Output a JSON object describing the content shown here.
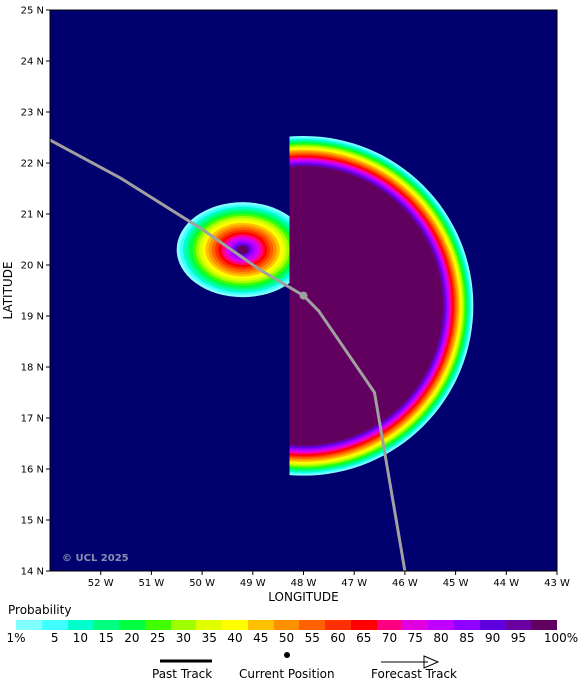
{
  "map": {
    "xlabel": "LONGITUDE",
    "ylabel": "LATITUDE",
    "lon_ticks": [
      "52 W",
      "51 W",
      "50 W",
      "49 W",
      "48 W",
      "47 W",
      "46 W",
      "45 W",
      "44 W",
      "43 W"
    ],
    "lat_ticks": [
      "25 N",
      "24 N",
      "23 N",
      "22 N",
      "21 N",
      "20 N",
      "19 N",
      "18 N",
      "17 N",
      "16 N",
      "15 N",
      "14 N"
    ],
    "lon_range": [
      -53,
      -43
    ],
    "lat_range": [
      14,
      25
    ],
    "background_color": "#00006e",
    "copyright": "© UCL 2025",
    "track": [
      {
        "lon": -53.0,
        "lat": 22.45
      },
      {
        "lon": -51.6,
        "lat": 21.7
      },
      {
        "lon": -50.0,
        "lat": 20.7
      },
      {
        "lon": -48.85,
        "lat": 19.9
      },
      {
        "lon": -48.0,
        "lat": 19.4
      },
      {
        "lon": -47.7,
        "lat": 19.1
      },
      {
        "lon": -46.6,
        "lat": 17.5
      },
      {
        "lon": -46.0,
        "lat": 14.0
      }
    ],
    "current_position": {
      "lon": -48.0,
      "lat": 19.4
    },
    "probability_region": {
      "center": {
        "lon": -48.0,
        "lat": 19.2
      },
      "core_radius_deg": 2.75,
      "ring_width_deg": 0.6,
      "west_lobe_center": {
        "lon": -49.2,
        "lat": 20.3
      }
    }
  },
  "legend": {
    "title": "Probability",
    "colors": [
      "#80ffff",
      "#40ffff",
      "#00ffcc",
      "#00ff80",
      "#00ff40",
      "#40ff00",
      "#a0ff00",
      "#e0ff00",
      "#ffff00",
      "#ffc000",
      "#ff9000",
      "#ff6000",
      "#ff3000",
      "#ff0000",
      "#ff0080",
      "#e000e0",
      "#c000ff",
      "#9000ff",
      "#6000e0",
      "#6a00a0",
      "#620060"
    ],
    "labels": [
      "1%",
      "5",
      "10",
      "15",
      "20",
      "25",
      "30",
      "35",
      "40",
      "45",
      "50",
      "55",
      "60",
      "65",
      "70",
      "75",
      "80",
      "85",
      "90",
      "95",
      "100%"
    ]
  },
  "key": {
    "past_track": "Past Track",
    "current_position": "Current Position",
    "forecast_track": "Forecast Track"
  }
}
